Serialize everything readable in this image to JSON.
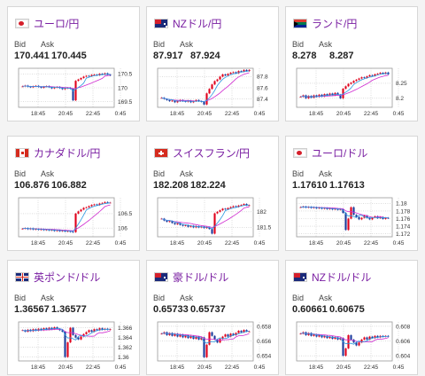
{
  "labels": {
    "bid": "Bid",
    "ask": "Ask"
  },
  "colors": {
    "up": "#e0001b",
    "down": "#1b3a9a",
    "ma_short": "#2a98e0",
    "ma_long": "#d02ad0",
    "pair_text": "#7a1fa2"
  },
  "pairs": [
    {
      "name": "ユーロ/円",
      "flag": "eu-jp",
      "bid": "170.441",
      "ask": "170.445",
      "chart_data": {
        "type": "candlestick",
        "x_ticks": [
          "18:45",
          "20:45",
          "22:45",
          "0:45"
        ],
        "y_ticks": [
          "170.5",
          "170",
          "169.5"
        ],
        "ylim": [
          169.3,
          170.7
        ],
        "close_series": [
          170.05,
          170.08,
          170.04,
          170.02,
          170.05,
          170.07,
          170.03,
          170.0,
          170.04,
          170.06,
          170.02,
          169.98,
          170.01,
          170.03,
          169.99,
          169.95,
          169.98,
          170.0,
          169.97,
          169.55,
          170.25,
          170.3,
          170.35,
          170.4,
          170.43,
          170.42,
          170.46,
          170.47,
          170.45,
          170.5,
          170.48,
          170.52,
          170.47,
          170.44
        ]
      }
    },
    {
      "name": "NZドル/円",
      "flag": "nz-jp",
      "bid": "87.917",
      "ask": "87.924",
      "chart_data": {
        "type": "candlestick",
        "x_ticks": [
          "18:45",
          "20:45",
          "22:45",
          "0:45"
        ],
        "y_ticks": [
          "87.8",
          "87.6",
          "87.4"
        ],
        "ylim": [
          87.25,
          87.95
        ],
        "close_series": [
          87.42,
          87.4,
          87.38,
          87.36,
          87.37,
          87.34,
          87.36,
          87.38,
          87.36,
          87.35,
          87.37,
          87.34,
          87.36,
          87.38,
          87.36,
          87.35,
          87.3,
          87.5,
          87.58,
          87.66,
          87.72,
          87.75,
          87.8,
          87.84,
          87.82,
          87.85,
          87.87,
          87.88,
          87.86,
          87.9,
          87.89,
          87.92,
          87.9,
          87.92
        ]
      }
    },
    {
      "name": "ランド/円",
      "flag": "za-jp",
      "bid": "8.278",
      "ask": "8.287",
      "chart_data": {
        "type": "candlestick",
        "x_ticks": [
          "18:45",
          "20:45",
          "22:45",
          "0:45"
        ],
        "y_ticks": [
          "8.25",
          "8.2"
        ],
        "ylim": [
          8.17,
          8.3
        ],
        "close_series": [
          8.205,
          8.21,
          8.2,
          8.208,
          8.202,
          8.21,
          8.205,
          8.212,
          8.206,
          8.214,
          8.209,
          8.216,
          8.21,
          8.218,
          8.212,
          8.2,
          8.232,
          8.24,
          8.248,
          8.252,
          8.258,
          8.262,
          8.266,
          8.27,
          8.268,
          8.273,
          8.277,
          8.275,
          8.28,
          8.282,
          8.285,
          8.282,
          8.286,
          8.28
        ]
      }
    },
    {
      "name": "カナダドル/円",
      "flag": "ca-jp",
      "bid": "106.876",
      "ask": "106.882",
      "chart_data": {
        "type": "candlestick",
        "x_ticks": [
          "18:45",
          "20:45",
          "22:45",
          "0:45"
        ],
        "y_ticks": [
          "106.5",
          "106"
        ],
        "ylim": [
          105.7,
          107.05
        ],
        "close_series": [
          105.98,
          106.0,
          105.96,
          105.99,
          105.95,
          105.97,
          105.94,
          105.96,
          105.93,
          105.95,
          105.92,
          105.94,
          105.9,
          105.93,
          105.89,
          105.92,
          105.88,
          105.9,
          105.87,
          105.86,
          106.5,
          106.58,
          106.64,
          106.7,
          106.72,
          106.76,
          106.8,
          106.82,
          106.8,
          106.85,
          106.87,
          106.9,
          106.88,
          106.88
        ]
      }
    },
    {
      "name": "スイスフラン/円",
      "flag": "ch-jp",
      "bid": "182.208",
      "ask": "182.224",
      "chart_data": {
        "type": "candlestick",
        "x_ticks": [
          "18:45",
          "20:45",
          "22:45",
          "0:45"
        ],
        "y_ticks": [
          "182",
          "181.5"
        ],
        "ylim": [
          181.2,
          182.45
        ],
        "close_series": [
          181.78,
          181.72,
          181.68,
          181.7,
          181.64,
          181.6,
          181.63,
          181.58,
          181.55,
          181.57,
          181.52,
          181.55,
          181.5,
          181.54,
          181.5,
          181.53,
          181.48,
          181.5,
          181.45,
          181.3,
          181.95,
          182.0,
          182.05,
          182.1,
          182.08,
          182.12,
          182.15,
          182.18,
          182.16,
          182.2,
          182.22,
          182.25,
          182.21,
          182.21
        ]
      }
    },
    {
      "name": "ユーロ/ドル",
      "flag": "eu-us",
      "bid": "1.17610",
      "ask": "1.17613",
      "chart_data": {
        "type": "candlestick",
        "x_ticks": [
          "18:45",
          "20:45",
          "22:45",
          "0:45"
        ],
        "y_ticks": [
          "1.18",
          "1.178",
          "1.176",
          "1.174",
          "1.172"
        ],
        "ylim": [
          1.1712,
          1.1815
        ],
        "close_series": [
          1.179,
          1.1792,
          1.1789,
          1.1791,
          1.1788,
          1.179,
          1.1787,
          1.1789,
          1.1786,
          1.1788,
          1.1785,
          1.1787,
          1.1784,
          1.1786,
          1.1783,
          1.1785,
          1.1775,
          1.173,
          1.176,
          1.179,
          1.177,
          1.1764,
          1.1758,
          1.1762,
          1.1768,
          1.1762,
          1.1758,
          1.1763,
          1.1766,
          1.1761,
          1.1764,
          1.1759,
          1.1762,
          1.1761
        ]
      }
    },
    {
      "name": "英ポンド/ドル",
      "flag": "gb-us",
      "bid": "1.36567",
      "ask": "1.36577",
      "chart_data": {
        "type": "candlestick",
        "x_ticks": [
          "18:45",
          "20:45",
          "22:45",
          "0:45"
        ],
        "y_ticks": [
          "1.366",
          "1.364",
          "1.362",
          "1.36"
        ],
        "ylim": [
          1.3592,
          1.3672
        ],
        "close_series": [
          1.3655,
          1.3652,
          1.3656,
          1.3653,
          1.3657,
          1.3654,
          1.3658,
          1.3655,
          1.3659,
          1.3656,
          1.366,
          1.3657,
          1.3661,
          1.3658,
          1.3655,
          1.3652,
          1.36,
          1.363,
          1.366,
          1.3645,
          1.364,
          1.3636,
          1.3642,
          1.3647,
          1.3651,
          1.3655,
          1.3652,
          1.3657,
          1.3655,
          1.3659,
          1.3656,
          1.3658,
          1.3656,
          1.3657
        ]
      }
    },
    {
      "name": "豪ドル/ドル",
      "flag": "au-us",
      "bid": "0.65733",
      "ask": "0.65737",
      "chart_data": {
        "type": "candlestick",
        "x_ticks": [
          "18:45",
          "20:45",
          "22:45",
          "0:45"
        ],
        "y_ticks": [
          "0.658",
          "0.656",
          "0.654"
        ],
        "ylim": [
          0.6533,
          0.6586
        ],
        "close_series": [
          0.657,
          0.6572,
          0.6568,
          0.6571,
          0.6567,
          0.657,
          0.6566,
          0.6569,
          0.6565,
          0.6568,
          0.6564,
          0.6567,
          0.6563,
          0.6566,
          0.6562,
          0.6565,
          0.6538,
          0.6555,
          0.6572,
          0.6567,
          0.6562,
          0.6558,
          0.6563,
          0.6566,
          0.6569,
          0.6566,
          0.657,
          0.6568,
          0.6571,
          0.6574,
          0.6572,
          0.6575,
          0.6573,
          0.6573
        ]
      }
    },
    {
      "name": "NZドル/ドル",
      "flag": "nz-us",
      "bid": "0.60661",
      "ask": "0.60675",
      "chart_data": {
        "type": "candlestick",
        "x_ticks": [
          "18:45",
          "20:45",
          "22:45",
          "0:45"
        ],
        "y_ticks": [
          "0.608",
          "0.606",
          "0.604"
        ],
        "ylim": [
          0.6033,
          0.6086
        ],
        "close_series": [
          0.607,
          0.6072,
          0.6068,
          0.6071,
          0.6067,
          0.6069,
          0.6066,
          0.6068,
          0.6065,
          0.6067,
          0.6064,
          0.6066,
          0.6063,
          0.6065,
          0.6062,
          0.6064,
          0.604,
          0.605,
          0.6068,
          0.6062,
          0.6058,
          0.6054,
          0.6058,
          0.6062,
          0.6065,
          0.6062,
          0.6066,
          0.6064,
          0.6067,
          0.6065,
          0.6067,
          0.6066,
          0.6067,
          0.6066
        ]
      }
    }
  ]
}
